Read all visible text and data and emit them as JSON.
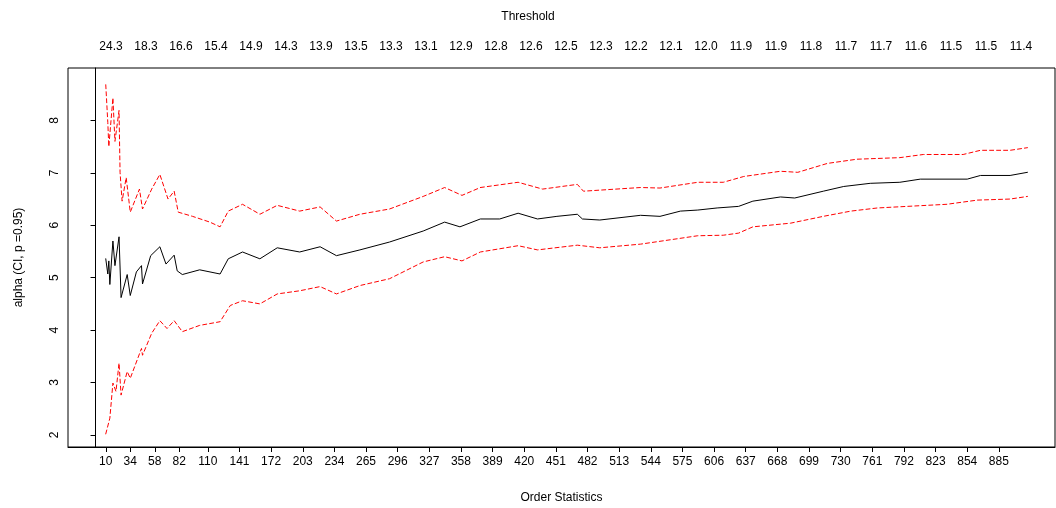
{
  "chart_data": {
    "type": "line",
    "xlabel": "Order Statistics",
    "ylabel": "alpha (CI, p =0.95)",
    "x2label": "Threshold",
    "xlim": [
      -27,
      940
    ],
    "ylim": [
      1.77,
      9.0
    ],
    "xticks": [
      10,
      34,
      58,
      82,
      110,
      141,
      172,
      203,
      234,
      265,
      296,
      327,
      358,
      389,
      420,
      451,
      482,
      513,
      544,
      575,
      606,
      637,
      668,
      699,
      730,
      761,
      792,
      823,
      854,
      885
    ],
    "yticks": [
      2,
      3,
      4,
      5,
      6,
      7,
      8
    ],
    "annotations": [
      "24.3",
      "18.3",
      "16.6",
      "15.4",
      "14.9",
      "14.3",
      "13.9",
      "13.5",
      "13.3",
      "13.1",
      "12.9",
      "12.8",
      "12.6",
      "12.5",
      "12.3",
      "12.2",
      "12.1",
      "12.0",
      "11.9",
      "11.9",
      "11.8",
      "11.7",
      "11.7",
      "11.6",
      "11.5",
      "11.5",
      "11.4"
    ],
    "grid": false,
    "marker": "none",
    "series": [
      {
        "color": "#000000",
        "line_style": "solid",
        "x": [
          10,
          12,
          13,
          14,
          17,
          19,
          23,
          25,
          31,
          34,
          40,
          45,
          46,
          54,
          63,
          69,
          77,
          80,
          85,
          102,
          122,
          130,
          144,
          161,
          178,
          200,
          220,
          236,
          259,
          288,
          321,
          342,
          357,
          377,
          396,
          414,
          433,
          452,
          472,
          477,
          494,
          534,
          553,
          573,
          590,
          609,
          630,
          644,
          671,
          685,
          713,
          733,
          759,
          788,
          808,
          854,
          867,
          896,
          913
        ],
        "values": [
          5.36,
          5.07,
          5.32,
          4.87,
          5.7,
          5.23,
          5.78,
          4.62,
          5.06,
          4.66,
          5.11,
          5.23,
          4.88,
          5.42,
          5.59,
          5.26,
          5.43,
          5.13,
          5.06,
          5.15,
          5.07,
          5.36,
          5.49,
          5.36,
          5.57,
          5.49,
          5.59,
          5.42,
          5.53,
          5.68,
          5.89,
          6.06,
          5.97,
          6.12,
          6.12,
          6.23,
          6.12,
          6.17,
          6.21,
          6.12,
          6.1,
          6.19,
          6.17,
          6.27,
          6.29,
          6.33,
          6.36,
          6.46,
          6.54,
          6.52,
          6.65,
          6.74,
          6.8,
          6.82,
          6.88,
          6.88,
          6.95,
          6.95,
          7.01
        ]
      },
      {
        "color": "#ff0000",
        "line_style": "dashed",
        "x": [
          10,
          12,
          13,
          17,
          19,
          23,
          24,
          26,
          30,
          34,
          43,
          46,
          55,
          63,
          71,
          77,
          81,
          95,
          112,
          122,
          130,
          144,
          161,
          178,
          200,
          220,
          236,
          259,
          288,
          321,
          342,
          359,
          377,
          414,
          438,
          472,
          478,
          534,
          553,
          590,
          615,
          635,
          671,
          688,
          717,
          746,
          788,
          811,
          850,
          867,
          896,
          913
        ],
        "values": [
          8.68,
          7.96,
          7.5,
          8.43,
          7.6,
          8.19,
          7.01,
          6.46,
          6.91,
          6.25,
          6.69,
          6.31,
          6.69,
          6.97,
          6.5,
          6.65,
          6.25,
          6.17,
          6.06,
          5.97,
          6.27,
          6.4,
          6.21,
          6.38,
          6.27,
          6.35,
          6.08,
          6.21,
          6.31,
          6.55,
          6.72,
          6.57,
          6.72,
          6.82,
          6.69,
          6.78,
          6.65,
          6.72,
          6.71,
          6.82,
          6.82,
          6.93,
          7.03,
          7.01,
          7.18,
          7.26,
          7.29,
          7.35,
          7.35,
          7.43,
          7.43,
          7.48
        ]
      },
      {
        "color": "#ff0000",
        "line_style": "dashed",
        "x": [
          10,
          14,
          17,
          20,
          23,
          25,
          31,
          34,
          45,
          46,
          55,
          63,
          70,
          77,
          85,
          102,
          122,
          132,
          144,
          161,
          178,
          200,
          220,
          236,
          259,
          288,
          321,
          342,
          359,
          377,
          414,
          433,
          472,
          494,
          534,
          590,
          615,
          630,
          644,
          681,
          713,
          740,
          766,
          795,
          834,
          864,
          896,
          913
        ],
        "values": [
          2.02,
          2.32,
          2.99,
          2.83,
          3.37,
          2.76,
          3.21,
          3.08,
          3.65,
          3.52,
          3.94,
          4.18,
          4.03,
          4.18,
          3.97,
          4.09,
          4.16,
          4.47,
          4.56,
          4.5,
          4.69,
          4.75,
          4.83,
          4.69,
          4.85,
          4.98,
          5.3,
          5.4,
          5.32,
          5.49,
          5.61,
          5.53,
          5.62,
          5.57,
          5.64,
          5.8,
          5.81,
          5.85,
          5.97,
          6.04,
          6.17,
          6.27,
          6.33,
          6.36,
          6.4,
          6.48,
          6.5,
          6.55
        ]
      }
    ]
  }
}
